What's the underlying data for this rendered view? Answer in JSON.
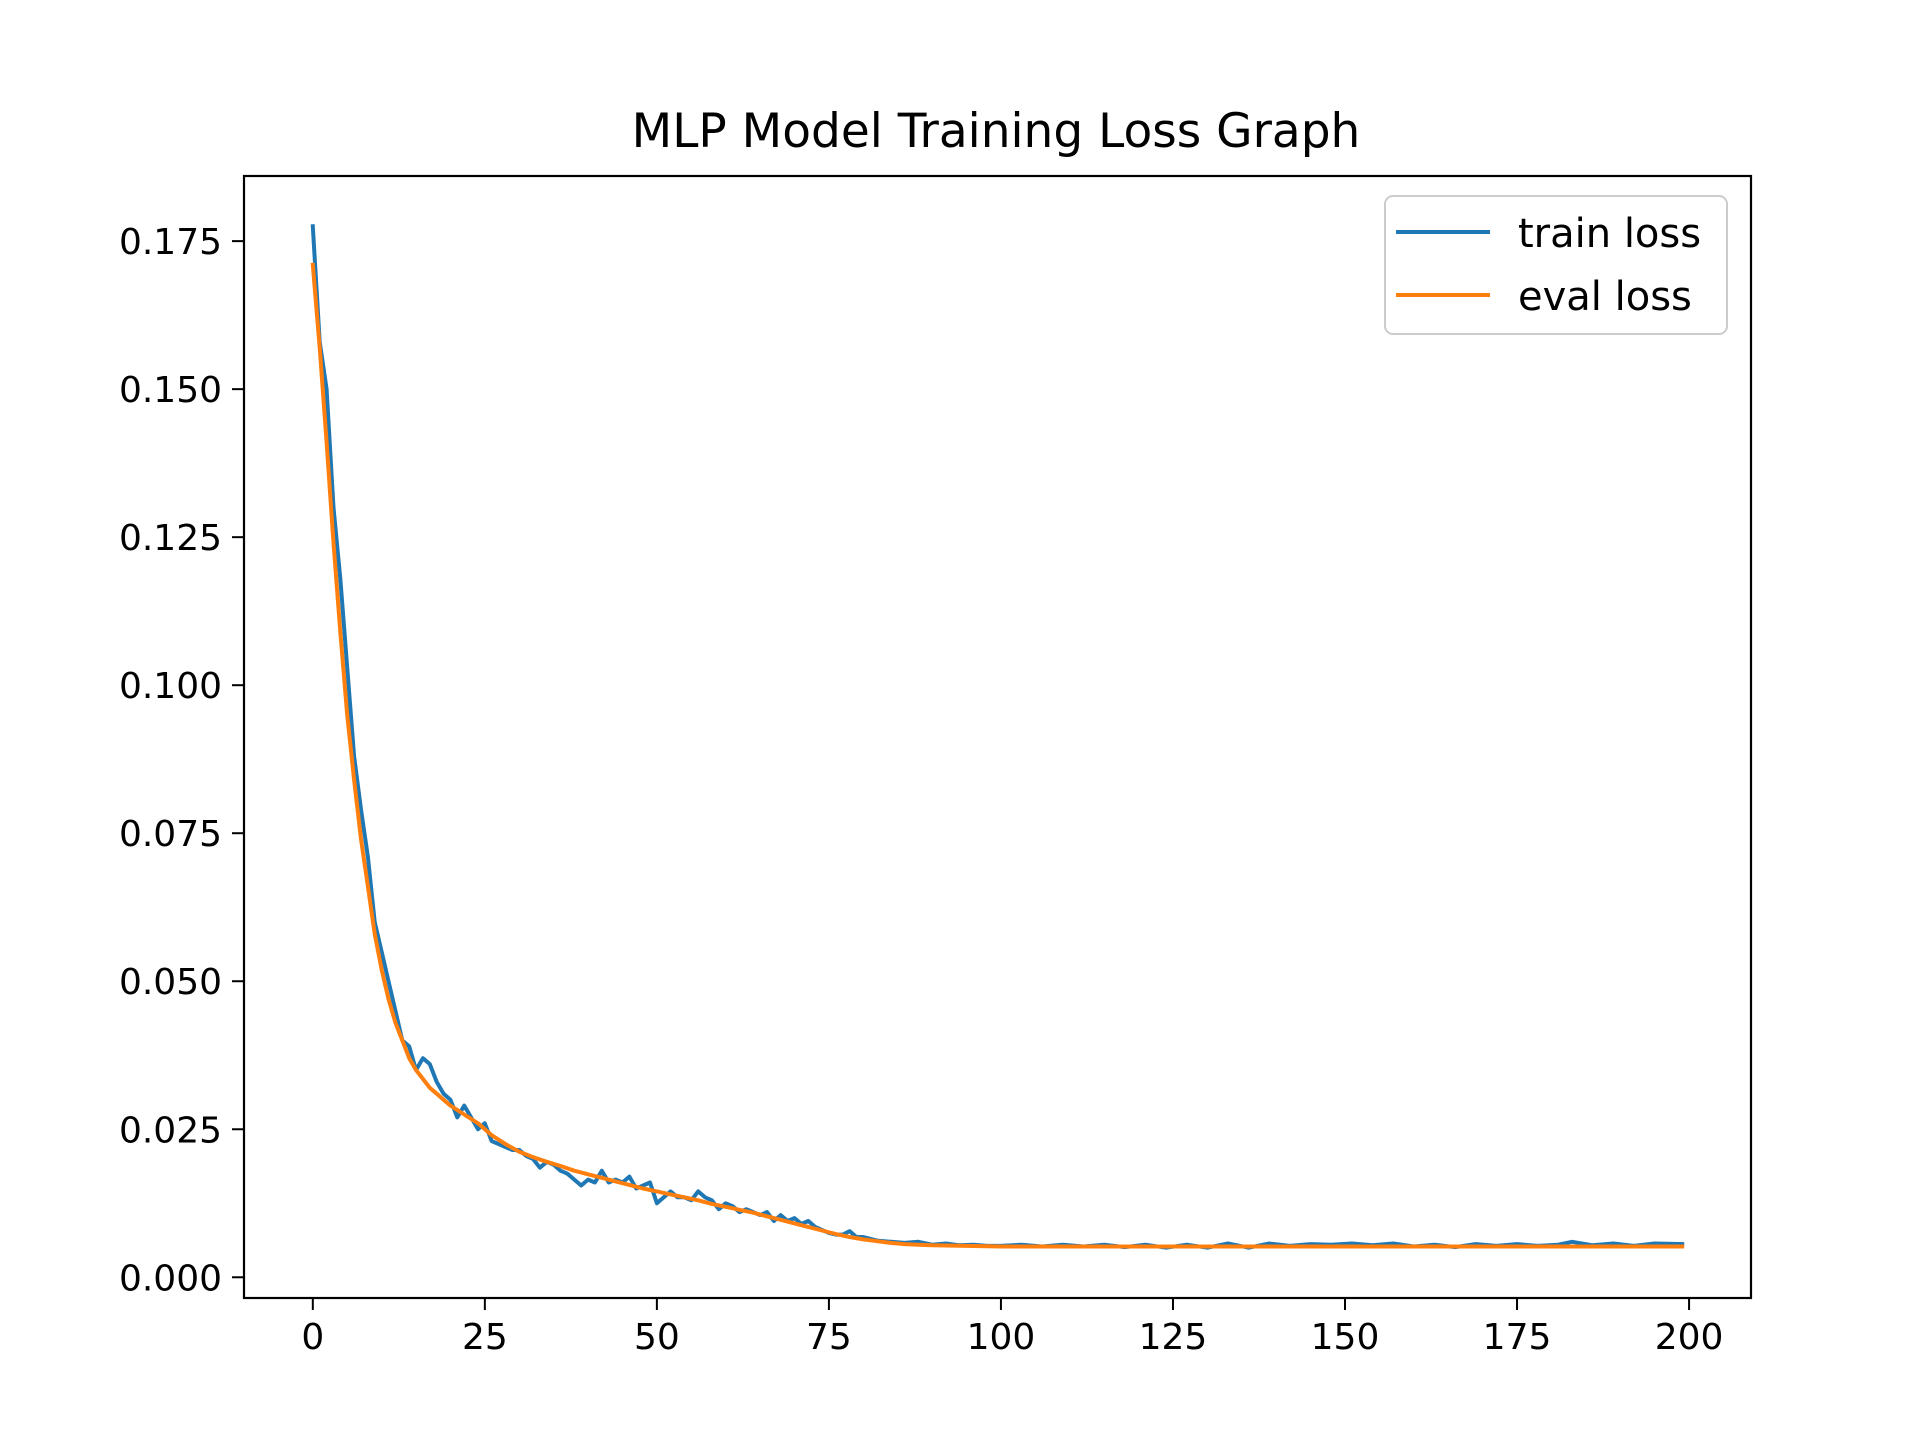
{
  "chart_data": {
    "type": "line",
    "title": "MLP Model Training Loss Graph",
    "xlabel": "",
    "ylabel": "",
    "xlim": [
      -10,
      209
    ],
    "ylim": [
      -0.0035,
      0.186
    ],
    "x_ticks": [
      0,
      25,
      50,
      75,
      100,
      125,
      150,
      175,
      200
    ],
    "y_ticks": [
      0.0,
      0.025,
      0.05,
      0.075,
      0.1,
      0.125,
      0.15,
      0.175
    ],
    "y_tick_labels": [
      "0.000",
      "0.025",
      "0.050",
      "0.075",
      "0.100",
      "0.125",
      "0.150",
      "0.175"
    ],
    "grid": false,
    "legend_position": "top-right",
    "series": [
      {
        "name": "train loss",
        "color": "#1f77b4",
        "points": [
          [
            0,
            0.1775
          ],
          [
            1,
            0.158
          ],
          [
            2,
            0.15
          ],
          [
            3,
            0.13
          ],
          [
            4,
            0.118
          ],
          [
            5,
            0.103
          ],
          [
            6,
            0.088
          ],
          [
            7,
            0.079
          ],
          [
            8,
            0.071
          ],
          [
            9,
            0.06
          ],
          [
            10,
            0.055
          ],
          [
            11,
            0.05
          ],
          [
            12,
            0.045
          ],
          [
            13,
            0.04
          ],
          [
            14,
            0.039
          ],
          [
            15,
            0.035
          ],
          [
            16,
            0.037
          ],
          [
            17,
            0.036
          ],
          [
            18,
            0.033
          ],
          [
            19,
            0.031
          ],
          [
            20,
            0.03
          ],
          [
            21,
            0.027
          ],
          [
            22,
            0.029
          ],
          [
            23,
            0.027
          ],
          [
            24,
            0.025
          ],
          [
            25,
            0.026
          ],
          [
            26,
            0.023
          ],
          [
            27,
            0.0225
          ],
          [
            28,
            0.022
          ],
          [
            29,
            0.0215
          ],
          [
            30,
            0.0215
          ],
          [
            31,
            0.0205
          ],
          [
            32,
            0.02
          ],
          [
            33,
            0.0185
          ],
          [
            34,
            0.0195
          ],
          [
            35,
            0.019
          ],
          [
            36,
            0.018
          ],
          [
            37,
            0.0175
          ],
          [
            38,
            0.0165
          ],
          [
            39,
            0.0155
          ],
          [
            40,
            0.0165
          ],
          [
            41,
            0.016
          ],
          [
            42,
            0.018
          ],
          [
            43,
            0.016
          ],
          [
            44,
            0.0165
          ],
          [
            45,
            0.016
          ],
          [
            46,
            0.017
          ],
          [
            47,
            0.015
          ],
          [
            48,
            0.0155
          ],
          [
            49,
            0.016
          ],
          [
            50,
            0.0125
          ],
          [
            51,
            0.0135
          ],
          [
            52,
            0.0145
          ],
          [
            53,
            0.0135
          ],
          [
            54,
            0.0135
          ],
          [
            55,
            0.013
          ],
          [
            56,
            0.0145
          ],
          [
            57,
            0.0135
          ],
          [
            58,
            0.013
          ],
          [
            59,
            0.0115
          ],
          [
            60,
            0.0125
          ],
          [
            61,
            0.012
          ],
          [
            62,
            0.011
          ],
          [
            63,
            0.0115
          ],
          [
            64,
            0.011
          ],
          [
            65,
            0.0105
          ],
          [
            66,
            0.011
          ],
          [
            67,
            0.0095
          ],
          [
            68,
            0.0105
          ],
          [
            69,
            0.0095
          ],
          [
            70,
            0.01
          ],
          [
            71,
            0.009
          ],
          [
            72,
            0.0095
          ],
          [
            73,
            0.0085
          ],
          [
            74,
            0.008
          ],
          [
            75,
            0.0075
          ],
          [
            76,
            0.0072
          ],
          [
            77,
            0.0072
          ],
          [
            78,
            0.0078
          ],
          [
            79,
            0.0068
          ],
          [
            80,
            0.0068
          ],
          [
            82,
            0.0062
          ],
          [
            84,
            0.006
          ],
          [
            86,
            0.0058
          ],
          [
            88,
            0.006
          ],
          [
            90,
            0.0055
          ],
          [
            92,
            0.0057
          ],
          [
            94,
            0.0054
          ],
          [
            96,
            0.0055
          ],
          [
            98,
            0.0053
          ],
          [
            100,
            0.0053
          ],
          [
            103,
            0.0055
          ],
          [
            106,
            0.0052
          ],
          [
            109,
            0.0055
          ],
          [
            112,
            0.0052
          ],
          [
            115,
            0.0055
          ],
          [
            118,
            0.0051
          ],
          [
            121,
            0.0055
          ],
          [
            124,
            0.005
          ],
          [
            127,
            0.0055
          ],
          [
            130,
            0.005
          ],
          [
            133,
            0.0057
          ],
          [
            136,
            0.005
          ],
          [
            139,
            0.0057
          ],
          [
            142,
            0.0053
          ],
          [
            145,
            0.0056
          ],
          [
            148,
            0.0055
          ],
          [
            151,
            0.0057
          ],
          [
            154,
            0.0054
          ],
          [
            157,
            0.0057
          ],
          [
            160,
            0.0052
          ],
          [
            163,
            0.0055
          ],
          [
            166,
            0.0051
          ],
          [
            169,
            0.0056
          ],
          [
            172,
            0.0053
          ],
          [
            175,
            0.0056
          ],
          [
            178,
            0.0053
          ],
          [
            181,
            0.0055
          ],
          [
            183,
            0.006
          ],
          [
            186,
            0.0054
          ],
          [
            189,
            0.0057
          ],
          [
            192,
            0.0053
          ],
          [
            195,
            0.0057
          ],
          [
            199,
            0.0056
          ]
        ]
      },
      {
        "name": "eval loss",
        "color": "#ff7f0e",
        "points": [
          [
            0,
            0.171
          ],
          [
            1,
            0.157
          ],
          [
            2,
            0.141
          ],
          [
            3,
            0.124
          ],
          [
            4,
            0.109
          ],
          [
            5,
            0.095
          ],
          [
            6,
            0.084
          ],
          [
            7,
            0.074
          ],
          [
            8,
            0.066
          ],
          [
            9,
            0.058
          ],
          [
            10,
            0.052
          ],
          [
            11,
            0.047
          ],
          [
            12,
            0.043
          ],
          [
            13,
            0.04
          ],
          [
            14,
            0.037
          ],
          [
            15,
            0.035
          ],
          [
            16,
            0.0335
          ],
          [
            17,
            0.032
          ],
          [
            18,
            0.031
          ],
          [
            19,
            0.03
          ],
          [
            20,
            0.029
          ],
          [
            22,
            0.0275
          ],
          [
            24,
            0.026
          ],
          [
            26,
            0.024
          ],
          [
            28,
            0.0225
          ],
          [
            30,
            0.0212
          ],
          [
            32,
            0.0203
          ],
          [
            34,
            0.0195
          ],
          [
            36,
            0.0188
          ],
          [
            38,
            0.018
          ],
          [
            40,
            0.0174
          ],
          [
            42,
            0.0168
          ],
          [
            44,
            0.0162
          ],
          [
            46,
            0.0156
          ],
          [
            48,
            0.015
          ],
          [
            50,
            0.0145
          ],
          [
            52,
            0.014
          ],
          [
            54,
            0.0135
          ],
          [
            56,
            0.013
          ],
          [
            58,
            0.0124
          ],
          [
            60,
            0.0119
          ],
          [
            62,
            0.0114
          ],
          [
            64,
            0.0109
          ],
          [
            66,
            0.0103
          ],
          [
            68,
            0.0097
          ],
          [
            70,
            0.0091
          ],
          [
            72,
            0.0085
          ],
          [
            74,
            0.0079
          ],
          [
            76,
            0.0073
          ],
          [
            78,
            0.0068
          ],
          [
            80,
            0.0064
          ],
          [
            82,
            0.0061
          ],
          [
            84,
            0.0058
          ],
          [
            86,
            0.0056
          ],
          [
            88,
            0.0055
          ],
          [
            90,
            0.0054
          ],
          [
            95,
            0.0053
          ],
          [
            100,
            0.0052
          ],
          [
            110,
            0.0052
          ],
          [
            120,
            0.0052
          ],
          [
            130,
            0.0052
          ],
          [
            140,
            0.0052
          ],
          [
            150,
            0.0052
          ],
          [
            160,
            0.0052
          ],
          [
            170,
            0.0052
          ],
          [
            180,
            0.0052
          ],
          [
            190,
            0.0052
          ],
          [
            199,
            0.0052
          ]
        ]
      }
    ]
  }
}
